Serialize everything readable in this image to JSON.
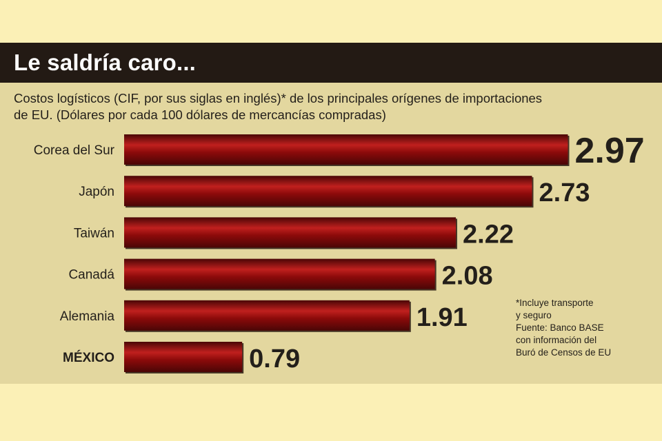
{
  "header": {
    "title": "Le saldría caro...",
    "subtitle_line1": "Costos logísticos (CIF, por sus siglas en inglés)* de los principales orígenes de importaciones",
    "subtitle_line2": "de EU.  (Dólares por cada 100 dólares de mercancías compradas)"
  },
  "notes": {
    "line1": "*Incluye transporte",
    "line2": "y seguro",
    "line3": "Fuente: Banco BASE",
    "line4": "con información del",
    "line5": "Buró de Censos de EU"
  },
  "colors": {
    "bar": "#8b0a0a",
    "bar_highlight": "#c0201e",
    "bar_shadow": "#4a0606",
    "title_bar": "#231a14",
    "panel": "#e3d79f",
    "text": "#231f1a"
  },
  "chart_data": {
    "type": "bar",
    "orientation": "horizontal",
    "categories": [
      "Corea del Sur",
      "Japón",
      "Taiwán",
      "Canadá",
      "Alemania",
      "MÉXICO"
    ],
    "values": [
      2.97,
      2.73,
      2.22,
      2.08,
      1.91,
      0.79
    ],
    "value_labels": [
      "2.97",
      "2.73",
      "2.22",
      "2.08",
      "1.91",
      "0.79"
    ],
    "highlight_category": "MÉXICO",
    "grid": false,
    "legend": "none"
  }
}
